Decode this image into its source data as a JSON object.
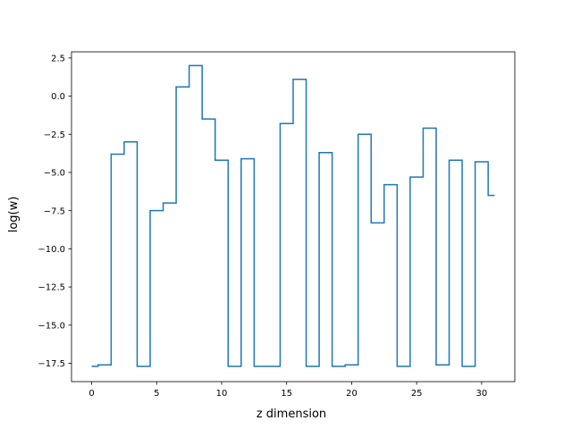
{
  "chart_data": {
    "type": "line",
    "drawstyle": "steps-mid",
    "xlabel": "z dimension",
    "ylabel": "log(w)",
    "xlim": [
      -1.55,
      32.55
    ],
    "ylim": [
      -18.7,
      2.9
    ],
    "xticks": [
      0,
      5,
      10,
      15,
      20,
      25,
      30
    ],
    "xtick_labels": [
      "0",
      "5",
      "10",
      "15",
      "20",
      "25",
      "30"
    ],
    "yticks": [
      2.5,
      0.0,
      -2.5,
      -5.0,
      -7.5,
      -10.0,
      -12.5,
      -15.0,
      -17.5
    ],
    "ytick_labels": [
      "2.5",
      "0.0",
      "−2.5",
      "−5.0",
      "−7.5",
      "−10.0",
      "−12.5",
      "−15.0",
      "−17.5"
    ],
    "grid": false,
    "color": "#1f77b4",
    "series": [
      {
        "x": [
          0,
          1,
          2,
          3,
          4,
          5,
          6,
          7,
          8,
          9,
          10,
          11,
          12,
          13,
          14,
          15,
          16,
          17,
          18,
          19,
          20,
          21,
          22,
          23,
          24,
          25,
          26,
          27,
          28,
          29,
          30,
          31
        ],
        "values": [
          -17.7,
          -17.6,
          -3.8,
          -3.0,
          -17.7,
          -7.5,
          -7.0,
          0.6,
          2.0,
          -1.5,
          -4.2,
          -17.7,
          -4.1,
          -17.7,
          -17.7,
          -1.8,
          1.1,
          -17.7,
          -3.7,
          -17.7,
          -17.6,
          -2.5,
          -8.3,
          -5.8,
          -17.7,
          -5.3,
          -2.1,
          -17.6,
          -4.2,
          -17.7,
          -4.3,
          -6.5
        ]
      }
    ]
  }
}
